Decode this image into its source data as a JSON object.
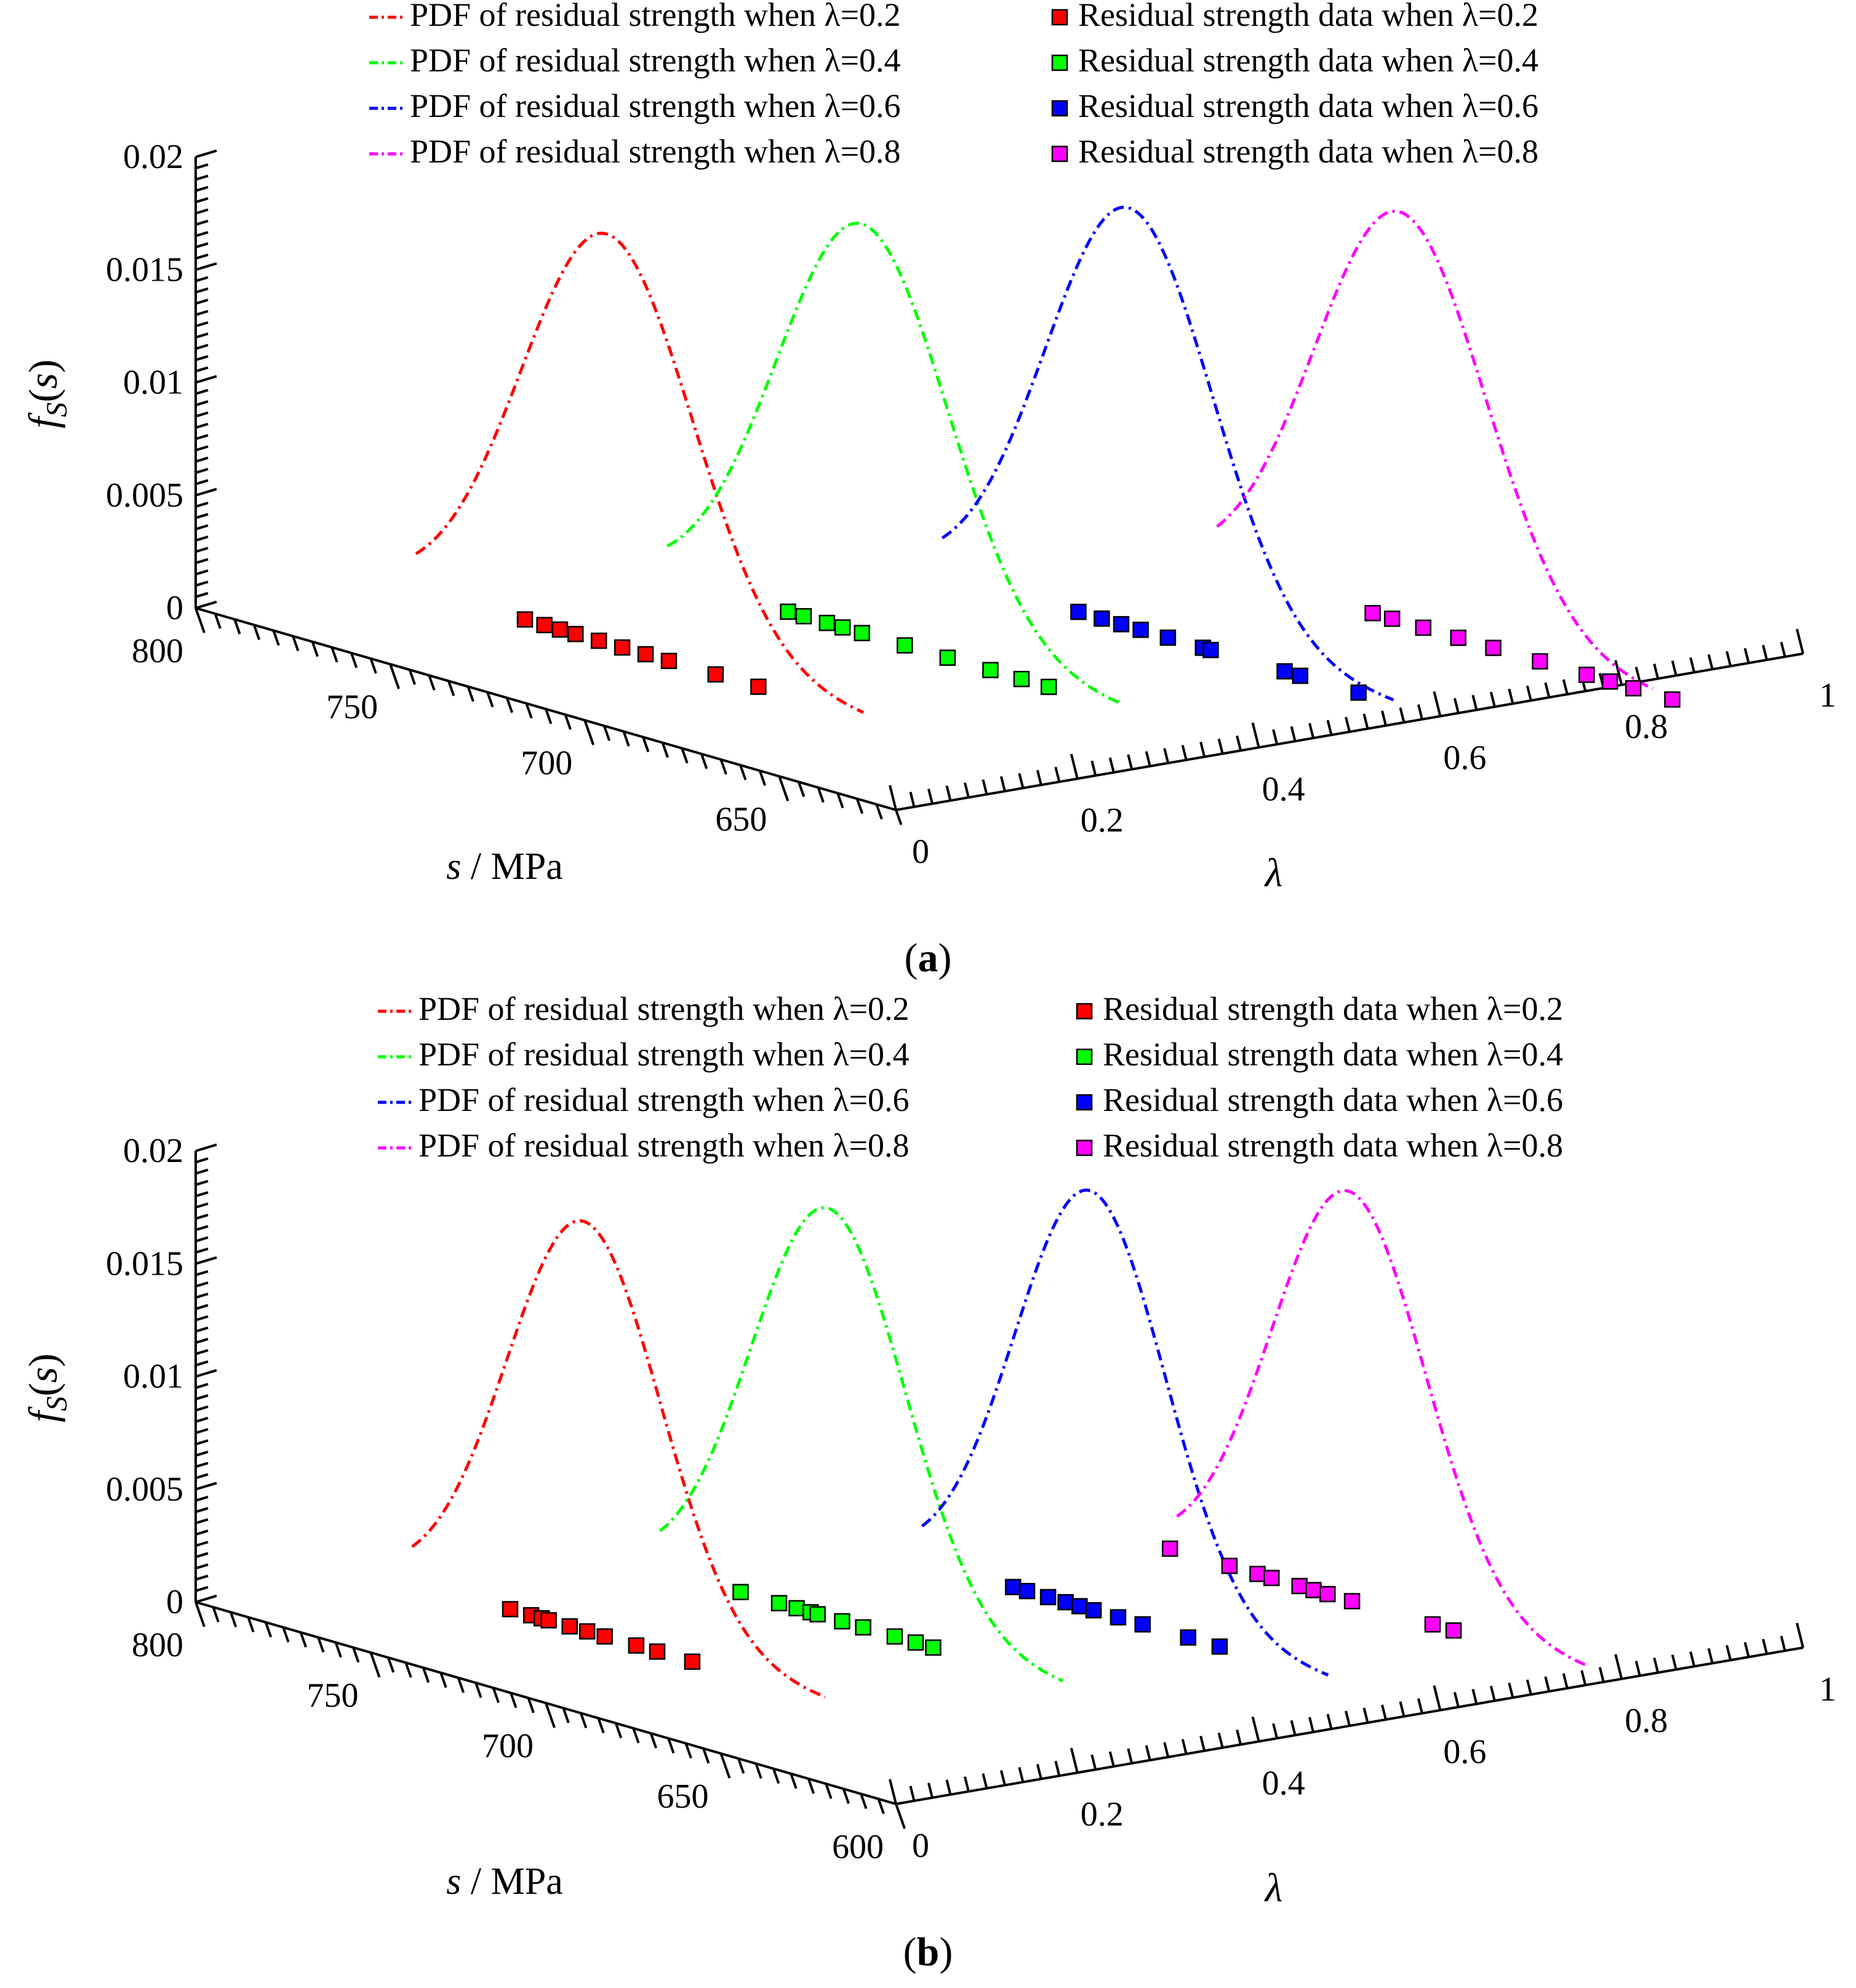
{
  "colors": {
    "lambda_0.2": "#ff0000",
    "lambda_0.4": "#00ff00",
    "lambda_0.6": "#0000ff",
    "lambda_0.8": "#ff00ff",
    "axes": "#000000"
  },
  "legend": {
    "pdf_0.2": "PDF of residual strength when λ=0.2",
    "pdf_0.4": "PDF of residual strength when λ=0.4",
    "pdf_0.6": "PDF of residual strength when λ=0.6",
    "pdf_0.8": "PDF of residual strength when λ=0.8",
    "data_0.2": "Residual strength data when λ=0.2",
    "data_0.4": "Residual strength data when λ=0.4",
    "data_0.6": "Residual strength data when λ=0.6",
    "data_0.8": "Residual strength data when λ=0.8"
  },
  "chart_data": [
    {
      "panel_label": "a",
      "type": "line",
      "view": "3d",
      "zlabel": "f_S(s)",
      "slabel": "MPa",
      "lambda_label": "λ",
      "z_ticks": [
        "0",
        "0.005",
        "0.01",
        "0.015",
        "0.02"
      ],
      "s_ticks": [
        "800",
        "750",
        "700",
        "650"
      ],
      "lambda_ticks": [
        "0",
        "0.2",
        "0.4",
        "0.6",
        "0.8",
        "1"
      ],
      "zlim": [
        0,
        0.02
      ],
      "slim": [
        620,
        800
      ],
      "lambdalim": [
        0,
        1
      ],
      "series": [
        {
          "name": "PDF of residual strength when λ=0.2",
          "kind": "pdf",
          "lambda": 0.2,
          "mean": 741,
          "std": 22,
          "s_range": [
            790,
            675
          ]
        },
        {
          "name": "PDF of residual strength when λ=0.4",
          "kind": "pdf",
          "lambda": 0.4,
          "mean": 722,
          "std": 22,
          "s_range": [
            772,
            655
          ]
        },
        {
          "name": "PDF of residual strength when λ=0.6",
          "kind": "pdf",
          "lambda": 0.6,
          "mean": 700,
          "std": 21.5,
          "s_range": [
            748,
            632
          ]
        },
        {
          "name": "PDF of residual strength when λ=0.8",
          "kind": "pdf",
          "lambda": 0.8,
          "mean": 677,
          "std": 22,
          "s_range": [
            724,
            612
          ]
        },
        {
          "name": "Residual strength data when λ=0.2",
          "kind": "data",
          "lambda": 0.2,
          "s": [
            762,
            757,
            753,
            749,
            743,
            737,
            731,
            725,
            713,
            702
          ]
        },
        {
          "name": "Residual strength data when λ=0.4",
          "kind": "data",
          "lambda": 0.4,
          "s": [
            741,
            737,
            731,
            727,
            722,
            711,
            700,
            689,
            681,
            674
          ]
        },
        {
          "name": "Residual strength data when λ=0.6",
          "kind": "data",
          "lambda": 0.6,
          "s": [
            713,
            707,
            702,
            697,
            690,
            681,
            679,
            660,
            656,
            641
          ]
        },
        {
          "name": "Residual strength data when λ=0.8",
          "kind": "data",
          "lambda": 0.8,
          "s": [
            684,
            679,
            671,
            662,
            653,
            641,
            629,
            623,
            617,
            607
          ]
        }
      ]
    },
    {
      "panel_label": "b",
      "type": "line",
      "view": "3d",
      "zlabel": "f_S(s)",
      "slabel": "MPa",
      "lambda_label": "λ",
      "z_ticks": [
        "0",
        "0.005",
        "0.01",
        "0.015",
        "0.02"
      ],
      "s_ticks": [
        "800",
        "750",
        "700",
        "650",
        "600"
      ],
      "lambda_ticks": [
        "0",
        "0.2",
        "0.4",
        "0.6",
        "0.8",
        "1"
      ],
      "zlim": [
        0,
        0.02
      ],
      "slim": [
        600,
        800
      ],
      "lambdalim": [
        0,
        1
      ],
      "series": [
        {
          "name": "PDF of residual strength when λ=0.2",
          "kind": "pdf",
          "lambda": 0.2,
          "mean": 741,
          "std": 22,
          "s_range": [
            790,
            672
          ]
        },
        {
          "name": "PDF of residual strength when λ=0.4",
          "kind": "pdf",
          "lambda": 0.4,
          "mean": 723,
          "std": 22,
          "s_range": [
            771,
            656
          ]
        },
        {
          "name": "PDF of residual strength when λ=0.6",
          "kind": "pdf",
          "lambda": 0.6,
          "mean": 700,
          "std": 21.5,
          "s_range": [
            748,
            632
          ]
        },
        {
          "name": "PDF of residual strength when λ=0.8",
          "kind": "pdf",
          "lambda": 0.8,
          "mean": 678,
          "std": 22,
          "s_range": [
            727,
            610
          ]
        },
        {
          "name": "Residual strength data when λ=0.2",
          "kind": "data",
          "lambda": 0.2,
          "s": [
            762,
            756,
            753,
            751,
            745,
            740,
            735,
            726,
            720,
            710
          ]
        },
        {
          "name": "Residual strength data when λ=0.4",
          "kind": "data",
          "lambda": 0.4,
          "s": [
            748,
            737,
            732,
            728,
            726,
            719,
            713,
            704,
            698,
            693
          ]
        },
        {
          "name": "Residual strength data when λ=0.6",
          "kind": "data",
          "lambda": 0.6,
          "s": [
            722,
            718,
            712,
            707,
            703,
            699,
            692,
            685,
            672,
            663
          ]
        },
        {
          "name": "Residual strength data when λ=0.8",
          "kind": "data",
          "lambda": 0.8,
          "s": [
            729,
            712,
            704,
            700,
            692,
            688,
            684,
            677,
            654,
            648
          ]
        }
      ]
    }
  ]
}
